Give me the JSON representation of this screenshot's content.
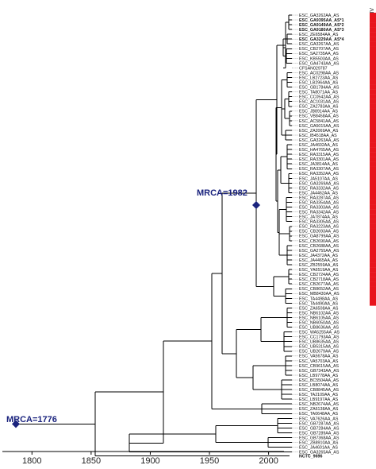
{
  "heatmap_header": "pNV",
  "colors": {
    "heatmap_present": "#e8141c",
    "mrca_marker": "#1a237e",
    "branch": "#000000"
  },
  "mrca_labels": [
    "MRCA=1982",
    "MRCA=1776"
  ],
  "reference_label": "NCTC_9696",
  "leaves": [
    "ESC_GA3262AA_AS",
    "ESC_GA9395AA_AS*1",
    "ESC_GA9149AA_AS*2",
    "ESC_GA9180AA_AS*3",
    "ESC_ZE6584AA_AS",
    "ESC_GA3229AA_AS*4",
    "ESC_GA3267AA_AS",
    "ESC_CB2707AA_AS",
    "ESC_SA2735AA_AS",
    "ESC_KB5503AA_AS",
    "ESC_GA4743AA_AS",
    "CFSAN029787",
    "ESC_AC0298AA_AS",
    "ESC_LB2723AA_AS",
    "ESC_LB2964AA_AS",
    "ESC_GB1784AA_AS",
    "ESC_TA8071AA_AS",
    "ESC_CC0542AA_AS",
    "ESC_AC1031AA_AS",
    "ESC_ZA2783AA_AS",
    "ESC_JB8914AA_AS",
    "ESC_VB8458AA_AS",
    "ESC_AC5841AA_AS",
    "ESC_GA5015AA_AS",
    "ESC_ZA2069AA_AS",
    "ESC_IB4518AA_AS",
    "ESC_GA3263AA_AS",
    "ESC_JA4602AA_AS",
    "ESC_HA4765AA_AS",
    "ESC_RA3315AA_AS",
    "ESC_RA3301AA_AS",
    "ESC_JA3814AA_AS",
    "ESC_RA3307AA_AS",
    "ESC_RA3352AA_AS",
    "ESC_JA5107AA_AS",
    "ESC_GA3269AA_AS",
    "ESC_RA3332AA_AS",
    "ESC_JA4462AA_AS",
    "ESC_RA3287AA_AS",
    "ESC_RA3354AA_AS",
    "ESC_RA3303AA_AS",
    "ESC_RA3342AA_AS",
    "ESC_JA7874AA_AS",
    "ESC_RA3305AA_AS",
    "ESC_RA3223AA_AS",
    "ESC_CB2693AA_AS",
    "ESC_GA8799AA_AS",
    "ESC_CB2690AA_AS",
    "ESC_CB2688AA_AS",
    "ESC_GA2755AA_AS",
    "ESC_JA4372AA_AS",
    "ESC_JA4465AA_AS",
    "ESC_ZB2559AA_AS",
    "ESC_YA6519AA_AS",
    "ESC_CB2724AA_AS",
    "ESC_CB2718AA_AS",
    "ESC_CB2677AA_AS",
    "ESC_CB8652AA_AS",
    "ESC_MB8430AA_AS",
    "ESC_TA4498AA_AS",
    "ESC_TA4490AA_AS",
    "ESC_ZA6508AA_AS",
    "ESC_NB6102AA_AS",
    "ESC_NB6105AA_AS",
    "ESC_NB6050AA_AS",
    "ESC_UB8636AA_AS",
    "ESC_WA5255AA_AS",
    "ESC_CC1793AA_AS",
    "ESC_UB8635AA_AS",
    "ESC_UB5315AA_AS",
    "ESC_UB2679AA_AS",
    "ESC_VA5678AA_AS",
    "ESC_VA5703AA_AS",
    "ESC_CB9615AA_AS",
    "ESC_GB7343AA_AS",
    "ESC_LB9778AA_AS",
    "ESC_BC5504AA_AS",
    "ESC_LB8074AA_AS",
    "ESC_CB8845AA_AS",
    "ESC_TA2109AA_AS",
    "ESC_LB9197AA_AS",
    "ESC_NB2674AA_AS",
    "ESC_ZA6138AA_AS",
    "ESC_TA0648AA_AS",
    "ESC_VA7626AA_AS",
    "ESC_GB7287AA_AS",
    "ESC_GB7284AA_AS",
    "ESC_GB7289AA_AS",
    "ESC_GB7368AA_AS",
    "ESC_ZB8910AA_AS",
    "ESC_JA4601AA_AS",
    "ESC_GA3265AA_AS"
  ],
  "bold_leaves": [
    1,
    2,
    3,
    5
  ],
  "heatmap_present_rows": 61,
  "axis": {
    "min": 1775,
    "max": 2013,
    "ticks": [
      1800,
      1850,
      1900,
      1950,
      2000
    ],
    "tick_labels": [
      "1800",
      "1850",
      "1900",
      "1950",
      "2000"
    ]
  },
  "nodes": [
    {
      "year": 1776,
      "marker": true
    },
    {
      "year": 1982,
      "marker": true
    }
  ]
}
